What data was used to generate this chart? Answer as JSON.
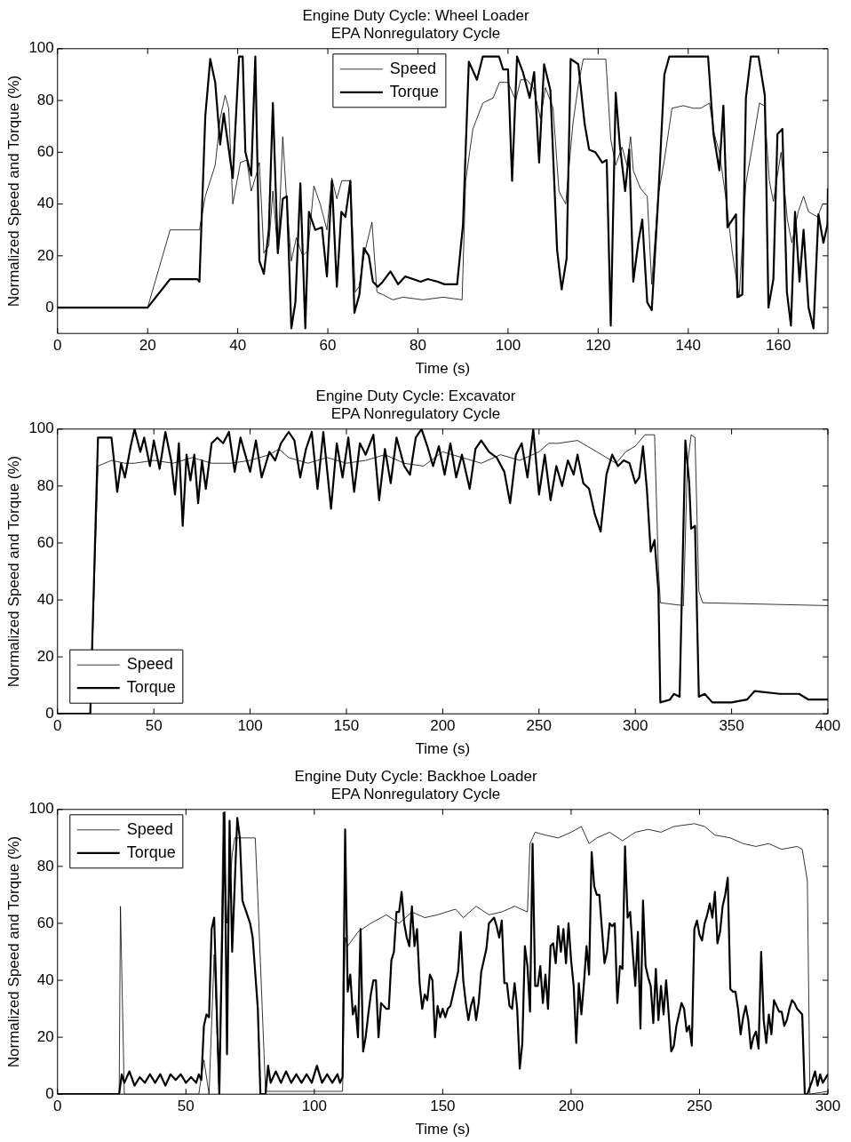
{
  "chart_data": [
    {
      "type": "line",
      "title": "Engine Duty Cycle: Wheel Loader",
      "subtitle": "EPA Nonregulatory Cycle",
      "xlabel": "Time (s)",
      "ylabel": "Normalized Speed and Torque (%)",
      "xlim": [
        0,
        171
      ],
      "ylim": [
        -10,
        100
      ],
      "xticks": [
        0,
        20,
        40,
        60,
        80,
        100,
        120,
        140,
        160
      ],
      "yticks": [
        0,
        20,
        40,
        60,
        80,
        100
      ],
      "legend": "top",
      "series": [
        {
          "name": "Speed",
          "color": "#000000",
          "x": [
            0,
            20,
            25,
            31.5,
            32.8,
            35,
            36.1,
            37.2,
            38,
            38.9,
            40.6,
            42,
            43,
            43.9,
            44.8,
            45.8,
            46.9,
            47.8,
            48.9,
            50,
            50.9,
            51.9,
            53,
            54.4,
            55.6,
            56.9,
            58.3,
            59.8,
            60.9,
            62,
            63.1,
            65,
            66.1,
            66.9,
            68,
            69.8,
            70.9,
            72.2,
            74.4,
            76.7,
            81.1,
            85.6,
            89.8,
            90.6,
            92.2,
            94.4,
            96.7,
            98.1,
            100,
            101.7,
            102.8,
            104.2,
            105.6,
            107.2,
            108.3,
            110,
            111.3,
            112.8,
            114.4,
            115.6,
            116.7,
            121.7,
            122.8,
            123.9,
            125.3,
            126.4,
            127.2,
            127.8,
            129.4,
            130.9,
            131.9,
            133.3,
            134.7,
            136.4,
            138.9,
            141.1,
            142.8,
            144.7,
            145.8,
            146.9,
            148.3,
            149.8,
            151.3,
            152.8,
            154.2,
            155.8,
            156.9,
            158,
            158.9,
            160.6,
            162,
            163,
            164.4,
            165.6,
            166.7,
            168.7,
            169.8,
            171
          ],
          "values": [
            0,
            0,
            30,
            30,
            43,
            55,
            73,
            82,
            77,
            40,
            56,
            57,
            45,
            50,
            56,
            21,
            24,
            45,
            21,
            66,
            40,
            18,
            27,
            20,
            22,
            47,
            40,
            30,
            50,
            42,
            49,
            49,
            6,
            8,
            20,
            33,
            6,
            5,
            3,
            4,
            3,
            4,
            3,
            49,
            69,
            79,
            81,
            87,
            87,
            80,
            88,
            88,
            85,
            73,
            85,
            77,
            45,
            40,
            71,
            86,
            96,
            96,
            65,
            55,
            62,
            55,
            66,
            53,
            46,
            43,
            9,
            43,
            57,
            77,
            78,
            77,
            77,
            79,
            67,
            60,
            43,
            21,
            4,
            48,
            62,
            79,
            78,
            49,
            41,
            60,
            34,
            25,
            37,
            43,
            37,
            35,
            40,
            40
          ]
        },
        {
          "name": "Torque",
          "color": "#000000",
          "x": [
            0,
            20,
            25,
            31,
            31.5,
            32.8,
            33.9,
            35,
            36.1,
            36.9,
            38.9,
            40.3,
            41.1,
            41.7,
            43,
            43.9,
            44.8,
            45.8,
            46.9,
            47.8,
            48.9,
            50,
            50.9,
            51.9,
            52.8,
            53.9,
            55,
            55.8,
            57.2,
            58.7,
            59.8,
            60.9,
            62,
            63,
            63.9,
            65,
            65.9,
            67,
            68,
            69.1,
            70,
            71.1,
            72.2,
            73.9,
            75.6,
            77.2,
            78.9,
            80.6,
            82.2,
            84.4,
            85.9,
            88.7,
            90,
            91.3,
            93.1,
            94.4,
            98,
            98.9,
            100,
            100.9,
            102,
            103.3,
            104.8,
            105.8,
            106.9,
            108,
            109.4,
            110.9,
            111.9,
            113,
            113.9,
            115.6,
            117,
            118,
            119.4,
            120.9,
            121.9,
            122.8,
            123.9,
            124.8,
            126,
            126.9,
            127.8,
            128.9,
            129.8,
            130.9,
            131.9,
            133.3,
            134.7,
            135.8,
            144.4,
            145.6,
            146.9,
            147.8,
            148.7,
            150.6,
            150.9,
            152,
            152.8,
            153.9,
            155.6,
            157,
            157.8,
            158.9,
            159.8,
            160.9,
            161.9,
            162.8,
            163.7,
            164.7,
            165.6,
            166.7,
            167.8,
            168.9,
            170,
            170.9,
            171
          ],
          "values": [
            0,
            0,
            11,
            11,
            10,
            74,
            96,
            87,
            63,
            75,
            50,
            97,
            97,
            60,
            51,
            97,
            18,
            13,
            30,
            79,
            21,
            42,
            43,
            -8,
            2,
            48,
            -8,
            37,
            30,
            31,
            12,
            49,
            8,
            37,
            35,
            49,
            -2,
            5,
            23,
            20,
            10,
            8,
            10,
            14,
            9,
            12,
            11,
            10,
            11,
            10,
            9,
            9,
            32,
            95,
            88,
            97,
            97,
            92,
            92,
            49,
            97,
            91,
            81,
            91,
            56,
            94,
            84,
            22,
            7,
            19,
            96,
            94,
            71,
            61,
            60,
            56,
            57,
            -7,
            83,
            63,
            45,
            61,
            10,
            25,
            34,
            2,
            -1,
            41,
            90,
            97,
            97,
            67,
            53,
            78,
            31,
            36,
            4,
            5,
            81,
            97,
            97,
            82,
            0,
            11,
            67,
            69,
            6,
            -7,
            37,
            10,
            30,
            0,
            -8,
            36,
            25,
            32,
            46
          ]
        }
      ]
    },
    {
      "type": "line",
      "title": "Engine Duty Cycle: Excavator",
      "subtitle": "EPA Nonregulatory Cycle",
      "xlabel": "Time (s)",
      "ylabel": "Normalized Speed and Torque (%)",
      "xlim": [
        0,
        400
      ],
      "ylim": [
        0,
        100
      ],
      "xticks": [
        0,
        50,
        100,
        150,
        200,
        250,
        300,
        350,
        400
      ],
      "yticks": [
        0,
        20,
        40,
        60,
        80,
        100
      ],
      "legend": "bottom left",
      "series": [
        {
          "name": "Speed",
          "color": "#000000",
          "x": [
            0,
            17,
            21,
            28,
            35,
            40,
            50,
            60,
            70,
            80,
            90,
            100,
            110,
            115,
            120,
            130,
            140,
            150,
            160,
            170,
            180,
            190,
            200,
            210,
            220,
            230,
            240,
            250,
            255,
            260,
            270,
            280,
            290,
            295,
            300,
            305,
            310,
            312,
            313,
            325,
            327,
            329,
            331,
            333,
            335,
            400
          ],
          "values": [
            0,
            0,
            87,
            89,
            88,
            88,
            89,
            88,
            90,
            88,
            88,
            89,
            91,
            93,
            90,
            88,
            90,
            88,
            89,
            91,
            88,
            87,
            92,
            90,
            88,
            91,
            89,
            92,
            95,
            95,
            96,
            92,
            88,
            92,
            94,
            98,
            98,
            51,
            39,
            38,
            87,
            98,
            97,
            43,
            39,
            38
          ]
        },
        {
          "name": "Torque",
          "color": "#000000",
          "x": [
            0,
            17,
            21,
            28,
            29,
            31,
            33,
            35,
            38,
            40,
            43,
            45,
            48,
            50,
            53,
            56,
            59,
            61,
            63,
            65,
            67,
            69,
            71,
            73,
            75,
            77,
            80,
            83,
            86,
            89,
            92,
            95,
            100,
            103,
            106,
            110,
            113,
            116,
            120,
            123,
            126,
            129,
            132,
            135,
            138,
            142,
            145,
            148,
            151,
            154,
            157,
            160,
            164,
            167,
            170,
            173,
            176,
            180,
            183,
            186,
            189,
            192,
            195,
            198,
            201,
            204,
            207,
            210,
            214,
            217,
            220,
            224,
            228,
            232,
            235,
            238,
            241,
            244,
            247,
            250,
            253,
            256,
            259,
            262,
            265,
            268,
            270,
            273,
            276,
            279,
            282,
            285,
            288,
            291,
            294,
            297,
            300,
            302,
            304,
            306,
            308,
            310,
            312,
            313,
            318,
            320,
            323,
            326,
            328,
            329,
            331,
            333,
            336,
            340,
            350,
            358,
            362,
            375,
            385,
            390,
            400
          ],
          "values": [
            0,
            0,
            97,
            97,
            91,
            78,
            88,
            83,
            94,
            100,
            92,
            97,
            87,
            96,
            86,
            99,
            89,
            77,
            95,
            66,
            91,
            82,
            91,
            74,
            89,
            79,
            95,
            97,
            95,
            99,
            85,
            97,
            85,
            96,
            83,
            92,
            89,
            95,
            99,
            96,
            83,
            93,
            99,
            79,
            99,
            72,
            95,
            83,
            97,
            78,
            95,
            91,
            98,
            75,
            93,
            81,
            97,
            87,
            84,
            97,
            100,
            94,
            87,
            94,
            84,
            95,
            83,
            91,
            79,
            93,
            96,
            92,
            90,
            85,
            74,
            91,
            95,
            83,
            100,
            77,
            91,
            75,
            87,
            80,
            89,
            84,
            91,
            81,
            79,
            70,
            64,
            84,
            91,
            87,
            89,
            88,
            81,
            83,
            94,
            79,
            57,
            61,
            43,
            4,
            5,
            7,
            6,
            96,
            81,
            65,
            66,
            6,
            7,
            4,
            4,
            5,
            8,
            7,
            7,
            5,
            5
          ]
        }
      ]
    },
    {
      "type": "line",
      "title": "Engine Duty Cycle: Backhoe Loader",
      "subtitle": "EPA Nonregulatory Cycle",
      "xlabel": "Time (s)",
      "ylabel": "Normalized Speed and Torque (%)",
      "xlim": [
        0,
        300
      ],
      "ylim": [
        0,
        100
      ],
      "xticks": [
        0,
        50,
        100,
        150,
        200,
        250,
        300
      ],
      "yticks": [
        0,
        20,
        40,
        60,
        80,
        100
      ],
      "legend": "top left",
      "series": [
        {
          "name": "Speed",
          "color": "#000000",
          "x": [
            0,
            24,
            24.5,
            26,
            55,
            57,
            59,
            61,
            63,
            64.5,
            66,
            68,
            69,
            77,
            78,
            81,
            111,
            112,
            113,
            117,
            122,
            128,
            133,
            138,
            143,
            148,
            155,
            158,
            163,
            168,
            173,
            178,
            183,
            184,
            186,
            190,
            195,
            200,
            204,
            207,
            210,
            215,
            220,
            225,
            230,
            235,
            240,
            248,
            252,
            256,
            262,
            267,
            272,
            277,
            282,
            288,
            290,
            292,
            293,
            300
          ],
          "values": [
            0,
            0,
            66,
            0,
            0,
            12,
            0,
            49,
            0,
            99,
            60,
            84,
            90,
            90,
            69,
            1,
            1,
            55,
            52,
            57,
            60,
            63,
            60,
            64,
            62,
            63,
            65,
            62,
            66,
            63,
            64,
            66,
            64,
            88,
            92,
            91,
            90,
            92,
            94,
            88,
            90,
            92,
            89,
            92,
            93,
            92,
            94,
            95,
            94,
            91,
            90,
            88,
            87,
            88,
            86,
            87,
            86,
            75,
            0,
            1
          ]
        },
        {
          "name": "Torque",
          "color": "#000000",
          "x": [
            0,
            24,
            25,
            26,
            28,
            30,
            32,
            34,
            36,
            38,
            40,
            42,
            44,
            46,
            48,
            50,
            52,
            54,
            55,
            56,
            57,
            58,
            59,
            60,
            61,
            62,
            63,
            65,
            66,
            67,
            68,
            70,
            71,
            72,
            75,
            76,
            78,
            79,
            81,
            82,
            83,
            85,
            87,
            89,
            91,
            93,
            95,
            97,
            99,
            101,
            103,
            105,
            107,
            109,
            110,
            111,
            112,
            113,
            114,
            115,
            116,
            117,
            118,
            119,
            120,
            121,
            122,
            123,
            124,
            125,
            126,
            127,
            128,
            129,
            130,
            131,
            132,
            133,
            134,
            135,
            136,
            137,
            138,
            139,
            140,
            141,
            142,
            143,
            144,
            145,
            146,
            147,
            148,
            149,
            150,
            151,
            152,
            153,
            154,
            155,
            156,
            157,
            158,
            159,
            160,
            161,
            162,
            163,
            164,
            165,
            166,
            167,
            168,
            169,
            170,
            171,
            172,
            173,
            174,
            175,
            176,
            177,
            178,
            179,
            180,
            181,
            182,
            183,
            184,
            185,
            186,
            187,
            188,
            189,
            190,
            191,
            192,
            193,
            194,
            195,
            196,
            197,
            198,
            199,
            200,
            201,
            202,
            203,
            204,
            205,
            206,
            207,
            208,
            209,
            210,
            211,
            212,
            213,
            214,
            215,
            216,
            217,
            218,
            219,
            220,
            221,
            222,
            223,
            224,
            225,
            226,
            227,
            228,
            229,
            230,
            231,
            232,
            233,
            234,
            235,
            236,
            237,
            238,
            239,
            240,
            241,
            242,
            243,
            244,
            245,
            246,
            247,
            248,
            249,
            250,
            251,
            252,
            253,
            254,
            255,
            256,
            257,
            258,
            259,
            260,
            261,
            262,
            263,
            264,
            265,
            266,
            267,
            268,
            269,
            270,
            271,
            272,
            273,
            274,
            275,
            276,
            277,
            278,
            279,
            280,
            281,
            282,
            283,
            284,
            285,
            286,
            287,
            288,
            289,
            290,
            291,
            292,
            294,
            295,
            296,
            297,
            298,
            300
          ],
          "values": [
            0,
            0,
            7,
            4,
            8,
            3,
            6,
            4,
            7,
            4,
            7,
            3,
            7,
            5,
            7,
            4,
            6,
            4,
            7,
            5,
            24,
            28,
            27,
            58,
            62,
            30,
            0,
            99,
            14,
            96,
            50,
            97,
            90,
            68,
            60,
            55,
            30,
            0,
            0,
            10,
            4,
            8,
            4,
            8,
            4,
            7,
            4,
            7,
            4,
            10,
            4,
            7,
            4,
            7,
            4,
            6,
            93,
            36,
            42,
            28,
            31,
            20,
            58,
            15,
            20,
            28,
            35,
            40,
            40,
            20,
            32,
            31,
            30,
            30,
            47,
            50,
            64,
            64,
            71,
            60,
            55,
            52,
            66,
            52,
            58,
            39,
            30,
            35,
            33,
            42,
            40,
            20,
            31,
            27,
            30,
            27,
            30,
            31,
            35,
            39,
            43,
            57,
            40,
            32,
            26,
            31,
            34,
            26,
            32,
            43,
            47,
            51,
            60,
            61,
            62,
            59,
            55,
            61,
            39,
            39,
            31,
            30,
            39,
            30,
            9,
            18,
            52,
            45,
            29,
            88,
            38,
            38,
            45,
            32,
            42,
            30,
            52,
            53,
            46,
            59,
            50,
            58,
            46,
            60,
            47,
            38,
            18,
            39,
            28,
            39,
            52,
            42,
            85,
            73,
            70,
            70,
            58,
            46,
            50,
            60,
            59,
            60,
            32,
            45,
            44,
            87,
            62,
            64,
            50,
            38,
            57,
            23,
            68,
            45,
            41,
            38,
            25,
            44,
            26,
            38,
            28,
            40,
            28,
            15,
            17,
            24,
            28,
            32,
            30,
            22,
            24,
            17,
            58,
            61,
            56,
            54,
            60,
            63,
            67,
            62,
            71,
            53,
            57,
            66,
            70,
            76,
            37,
            36,
            36,
            30,
            21,
            27,
            31,
            26,
            16,
            20,
            22,
            16,
            50,
            26,
            18,
            28,
            21,
            33,
            31,
            29,
            29,
            24,
            26,
            30,
            33,
            32,
            30,
            29,
            28,
            0,
            0,
            5,
            8,
            3,
            7,
            4,
            7
          ]
        }
      ]
    }
  ]
}
